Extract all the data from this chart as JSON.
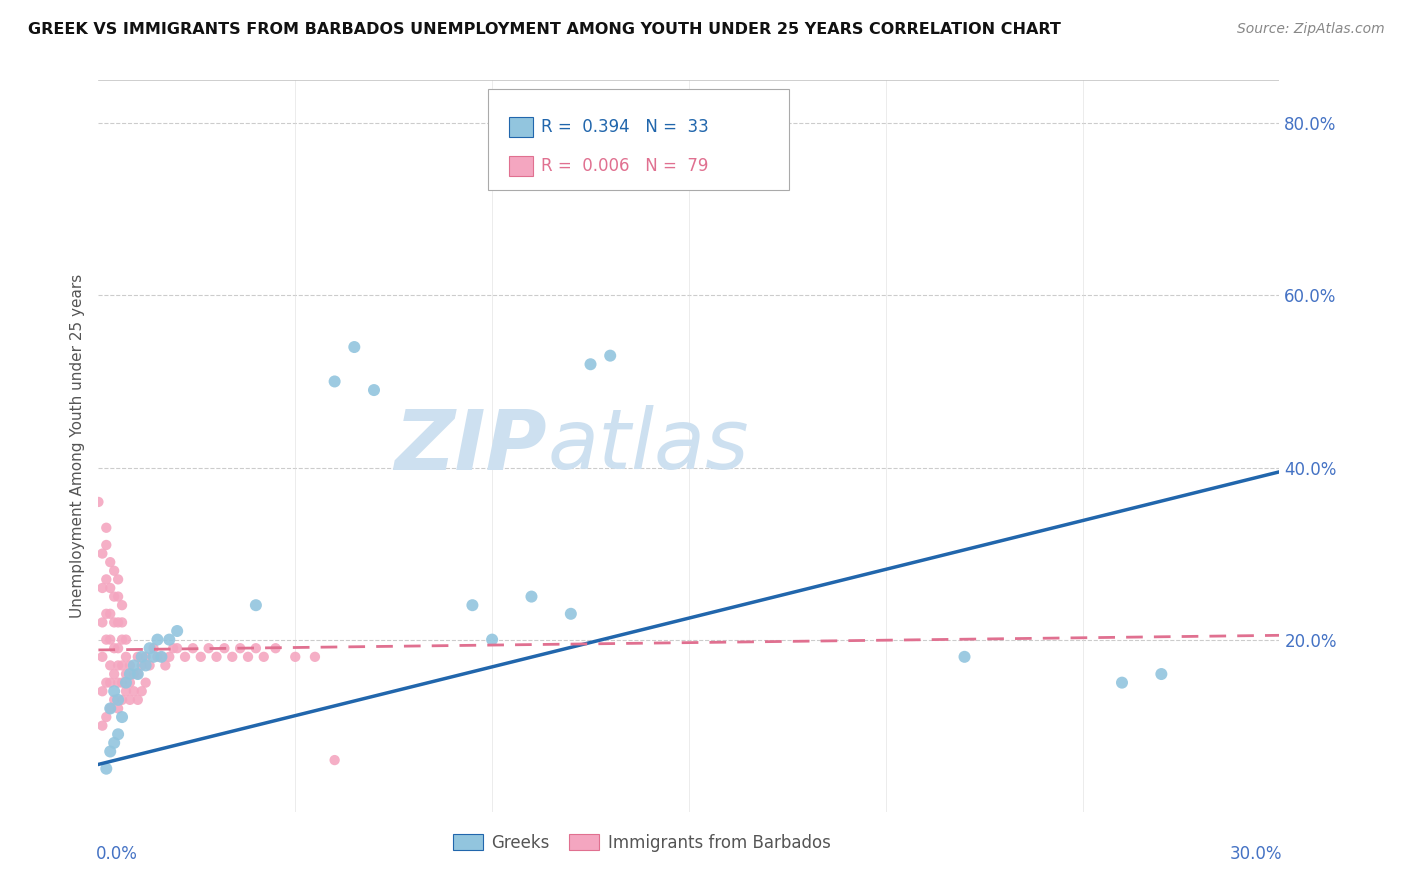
{
  "title": "GREEK VS IMMIGRANTS FROM BARBADOS UNEMPLOYMENT AMONG YOUTH UNDER 25 YEARS CORRELATION CHART",
  "source": "Source: ZipAtlas.com",
  "ylabel": "Unemployment Among Youth under 25 years",
  "xlim": [
    0.0,
    0.3
  ],
  "ylim": [
    0.0,
    0.85
  ],
  "yticks": [
    0.0,
    0.2,
    0.4,
    0.6,
    0.8
  ],
  "ytick_labels": [
    "",
    "20.0%",
    "40.0%",
    "60.0%",
    "80.0%"
  ],
  "greek_color": "#92c5de",
  "barbados_color": "#f4a6c0",
  "greek_line_color": "#2166ac",
  "barbados_line_color": "#e07090",
  "watermark_color": "#cde0f0",
  "greeks_x": [
    0.002,
    0.003,
    0.003,
    0.004,
    0.004,
    0.005,
    0.005,
    0.006,
    0.007,
    0.008,
    0.009,
    0.01,
    0.011,
    0.012,
    0.013,
    0.014,
    0.015,
    0.016,
    0.018,
    0.02,
    0.04,
    0.06,
    0.065,
    0.07,
    0.095,
    0.1,
    0.11,
    0.12,
    0.125,
    0.13,
    0.22,
    0.26,
    0.27
  ],
  "greeks_y": [
    0.05,
    0.07,
    0.12,
    0.08,
    0.14,
    0.09,
    0.13,
    0.11,
    0.15,
    0.16,
    0.17,
    0.16,
    0.18,
    0.17,
    0.19,
    0.18,
    0.2,
    0.18,
    0.2,
    0.21,
    0.24,
    0.5,
    0.54,
    0.49,
    0.24,
    0.2,
    0.25,
    0.23,
    0.52,
    0.53,
    0.18,
    0.15,
    0.16
  ],
  "barbados_x": [
    0.0,
    0.001,
    0.001,
    0.001,
    0.001,
    0.001,
    0.001,
    0.002,
    0.002,
    0.002,
    0.002,
    0.002,
    0.002,
    0.002,
    0.003,
    0.003,
    0.003,
    0.003,
    0.003,
    0.003,
    0.003,
    0.004,
    0.004,
    0.004,
    0.004,
    0.004,
    0.004,
    0.005,
    0.005,
    0.005,
    0.005,
    0.005,
    0.005,
    0.005,
    0.006,
    0.006,
    0.006,
    0.006,
    0.006,
    0.006,
    0.007,
    0.007,
    0.007,
    0.007,
    0.008,
    0.008,
    0.008,
    0.009,
    0.009,
    0.01,
    0.01,
    0.01,
    0.011,
    0.011,
    0.012,
    0.012,
    0.013,
    0.014,
    0.015,
    0.016,
    0.017,
    0.018,
    0.019,
    0.02,
    0.022,
    0.024,
    0.026,
    0.028,
    0.03,
    0.032,
    0.034,
    0.036,
    0.038,
    0.04,
    0.042,
    0.045,
    0.05,
    0.055,
    0.06
  ],
  "barbados_y": [
    0.36,
    0.1,
    0.14,
    0.18,
    0.22,
    0.26,
    0.3,
    0.11,
    0.15,
    0.2,
    0.23,
    0.27,
    0.31,
    0.33,
    0.12,
    0.15,
    0.17,
    0.2,
    0.23,
    0.26,
    0.29,
    0.13,
    0.16,
    0.19,
    0.22,
    0.25,
    0.28,
    0.12,
    0.15,
    0.17,
    0.19,
    0.22,
    0.25,
    0.27,
    0.13,
    0.15,
    0.17,
    0.2,
    0.22,
    0.24,
    0.14,
    0.16,
    0.18,
    0.2,
    0.13,
    0.15,
    0.17,
    0.14,
    0.16,
    0.13,
    0.16,
    0.18,
    0.14,
    0.17,
    0.15,
    0.18,
    0.17,
    0.19,
    0.18,
    0.18,
    0.17,
    0.18,
    0.19,
    0.19,
    0.18,
    0.19,
    0.18,
    0.19,
    0.18,
    0.19,
    0.18,
    0.19,
    0.18,
    0.19,
    0.18,
    0.19,
    0.18,
    0.18,
    0.06
  ]
}
